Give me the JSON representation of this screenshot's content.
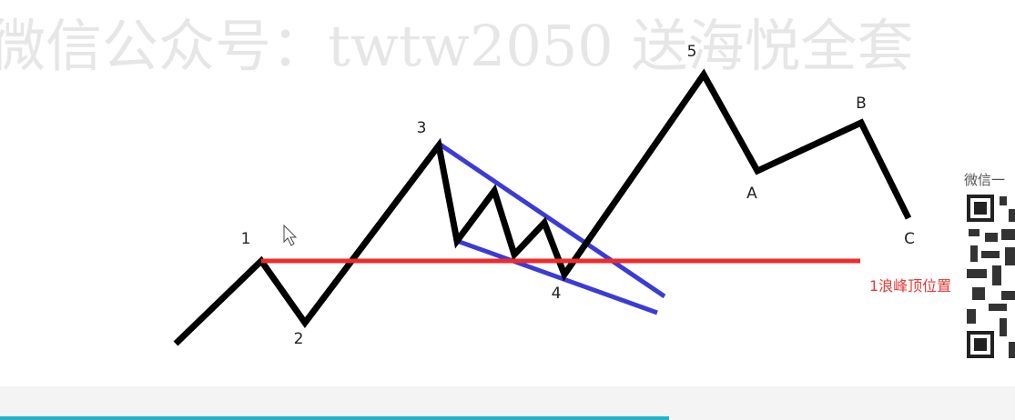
{
  "watermark": "微信公众号：twtw2050 送海悦全套",
  "wave_labels": [
    "1",
    "2",
    "3",
    "4",
    "5",
    "A",
    "B",
    "C"
  ],
  "level_label": "1浪峰顶位置",
  "side_panel": {
    "label": "微信一"
  }
}
